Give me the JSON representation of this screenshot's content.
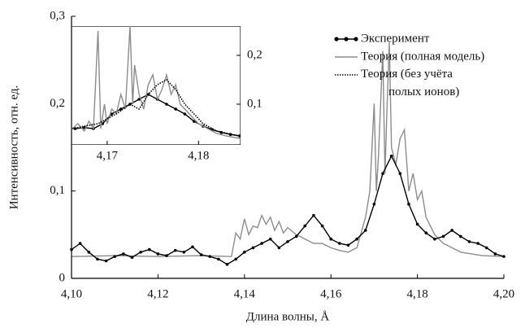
{
  "chart_data": [
    {
      "type": "line",
      "xlabel": "Длина волны, Å",
      "ylabel": "Интенсивность, отн. ед.",
      "xlim": [
        4.1,
        4.2
      ],
      "ylim": [
        0,
        0.3
      ],
      "xticks": [
        {
          "value": 4.1,
          "label": "4,10"
        },
        {
          "value": 4.12,
          "label": "4,12"
        },
        {
          "value": 4.14,
          "label": "4,14"
        },
        {
          "value": 4.16,
          "label": "4,16"
        },
        {
          "value": 4.18,
          "label": "4,18"
        },
        {
          "value": 4.2,
          "label": "4,20"
        }
      ],
      "yticks": [
        0,
        {
          "value": 0.1,
          "label": "0,1"
        },
        {
          "value": 0.2,
          "label": "0,2"
        },
        {
          "value": 0.3,
          "label": "0,3"
        }
      ],
      "yaxis_side": "left",
      "series": [
        {
          "color": "#8c8c8c",
          "style": "solid",
          "markers": false,
          "x": [
            4.1,
            4.11,
            4.12,
            4.13,
            4.137,
            4.138,
            4.139,
            4.14,
            4.141,
            4.142,
            4.143,
            4.144,
            4.145,
            4.146,
            4.147,
            4.148,
            4.149,
            4.15,
            4.152,
            4.154,
            4.156,
            4.158,
            4.16,
            4.162,
            4.164,
            4.166,
            4.168,
            4.169,
            4.17,
            4.1705,
            4.171,
            4.172,
            4.1725,
            4.173,
            4.1735,
            4.174,
            4.175,
            4.176,
            4.177,
            4.178,
            4.179,
            4.18,
            4.181,
            4.182,
            4.184,
            4.186,
            4.188,
            4.19,
            4.195,
            4.2
          ],
          "values": [
            0.025,
            0.026,
            0.025,
            0.026,
            0.025,
            0.052,
            0.045,
            0.068,
            0.05,
            0.06,
            0.058,
            0.072,
            0.062,
            0.07,
            0.055,
            0.065,
            0.052,
            0.058,
            0.05,
            0.045,
            0.04,
            0.04,
            0.035,
            0.032,
            0.03,
            0.035,
            0.07,
            0.1,
            0.2,
            0.1,
            0.14,
            0.26,
            0.12,
            0.2,
            0.27,
            0.15,
            0.13,
            0.16,
            0.17,
            0.1,
            0.12,
            0.09,
            0.1,
            0.07,
            0.05,
            0.04,
            0.035,
            0.03,
            0.026,
            0.025
          ]
        },
        {
          "color": "#000000",
          "style": "solid",
          "markers": true,
          "x": [
            4.1,
            4.102,
            4.104,
            4.106,
            4.108,
            4.11,
            4.112,
            4.114,
            4.116,
            4.118,
            4.12,
            4.122,
            4.124,
            4.126,
            4.128,
            4.13,
            4.132,
            4.134,
            4.136,
            4.138,
            4.14,
            4.142,
            4.144,
            4.146,
            4.148,
            4.15,
            4.152,
            4.154,
            4.156,
            4.158,
            4.16,
            4.162,
            4.164,
            4.166,
            4.168,
            4.17,
            4.172,
            4.174,
            4.176,
            4.178,
            4.18,
            4.182,
            4.184,
            4.186,
            4.188,
            4.19,
            4.192,
            4.194,
            4.196,
            4.198,
            4.2
          ],
          "values": [
            0.033,
            0.04,
            0.03,
            0.022,
            0.02,
            0.025,
            0.028,
            0.024,
            0.03,
            0.033,
            0.028,
            0.026,
            0.032,
            0.03,
            0.036,
            0.027,
            0.025,
            0.022,
            0.016,
            0.022,
            0.03,
            0.035,
            0.04,
            0.045,
            0.035,
            0.042,
            0.048,
            0.06,
            0.072,
            0.06,
            0.045,
            0.04,
            0.038,
            0.045,
            0.055,
            0.085,
            0.12,
            0.14,
            0.12,
            0.085,
            0.062,
            0.052,
            0.045,
            0.048,
            0.055,
            0.048,
            0.042,
            0.04,
            0.035,
            0.028,
            0.025
          ]
        }
      ]
    },
    {
      "type": "line",
      "xlim": [
        4.1661,
        4.1846
      ],
      "ylim": [
        0.0167,
        0.26
      ],
      "xticks": [
        {
          "value": 4.17,
          "label": "4,17"
        },
        {
          "value": 4.18,
          "label": "4,18"
        }
      ],
      "yticks": [
        {
          "value": 0.1,
          "label": "0,1"
        },
        {
          "value": 0.2,
          "label": "0,2"
        }
      ],
      "yaxis_side": "right",
      "legend": "outside-right",
      "series": [
        {
          "name": "Эксперимент",
          "color": "#000000",
          "style": "solid",
          "markers": true,
          "x": [
            4.1665,
            4.1675,
            4.1685,
            4.1695,
            4.1705,
            4.1715,
            4.1725,
            4.1735,
            4.1745,
            4.1755,
            4.1765,
            4.1775,
            4.1785,
            4.1795,
            4.1805,
            4.1815,
            4.1825,
            4.1835,
            4.1845
          ],
          "values": [
            0.05,
            0.052,
            0.05,
            0.06,
            0.08,
            0.09,
            0.1,
            0.11,
            0.12,
            0.11,
            0.1,
            0.09,
            0.08,
            0.065,
            0.055,
            0.048,
            0.042,
            0.038,
            0.035
          ]
        },
        {
          "name": "Теория (полная модель)",
          "color": "#8c8c8c",
          "style": "solid",
          "markers": false,
          "x": [
            4.1662,
            4.1668,
            4.1675,
            4.168,
            4.1685,
            4.169,
            4.1693,
            4.1697,
            4.17,
            4.1705,
            4.171,
            4.1715,
            4.172,
            4.1725,
            4.1728,
            4.173,
            4.1735,
            4.174,
            4.1745,
            4.175,
            4.1755,
            4.176,
            4.1765,
            4.177,
            4.1775,
            4.178,
            4.179,
            4.18,
            4.181,
            4.182,
            4.183,
            4.1845
          ],
          "values": [
            0.05,
            0.06,
            0.045,
            0.065,
            0.05,
            0.25,
            0.05,
            0.1,
            0.06,
            0.09,
            0.08,
            0.12,
            0.09,
            0.26,
            0.1,
            0.18,
            0.12,
            0.09,
            0.14,
            0.16,
            0.11,
            0.13,
            0.16,
            0.12,
            0.14,
            0.1,
            0.08,
            0.06,
            0.05,
            0.04,
            0.035,
            0.03
          ]
        },
        {
          "name": "Теория (без учёта\nполых ионов)",
          "color": "#000000",
          "style": "dotted",
          "markers": false,
          "x": [
            4.1662,
            4.1675,
            4.169,
            4.17,
            4.171,
            4.1725,
            4.1735,
            4.1745,
            4.1755,
            4.1765,
            4.1775,
            4.1785,
            4.1795,
            4.1805,
            4.182,
            4.1845
          ],
          "values": [
            0.05,
            0.055,
            0.06,
            0.07,
            0.08,
            0.1,
            0.09,
            0.12,
            0.14,
            0.15,
            0.13,
            0.1,
            0.08,
            0.06,
            0.045,
            0.035
          ]
        }
      ]
    }
  ]
}
